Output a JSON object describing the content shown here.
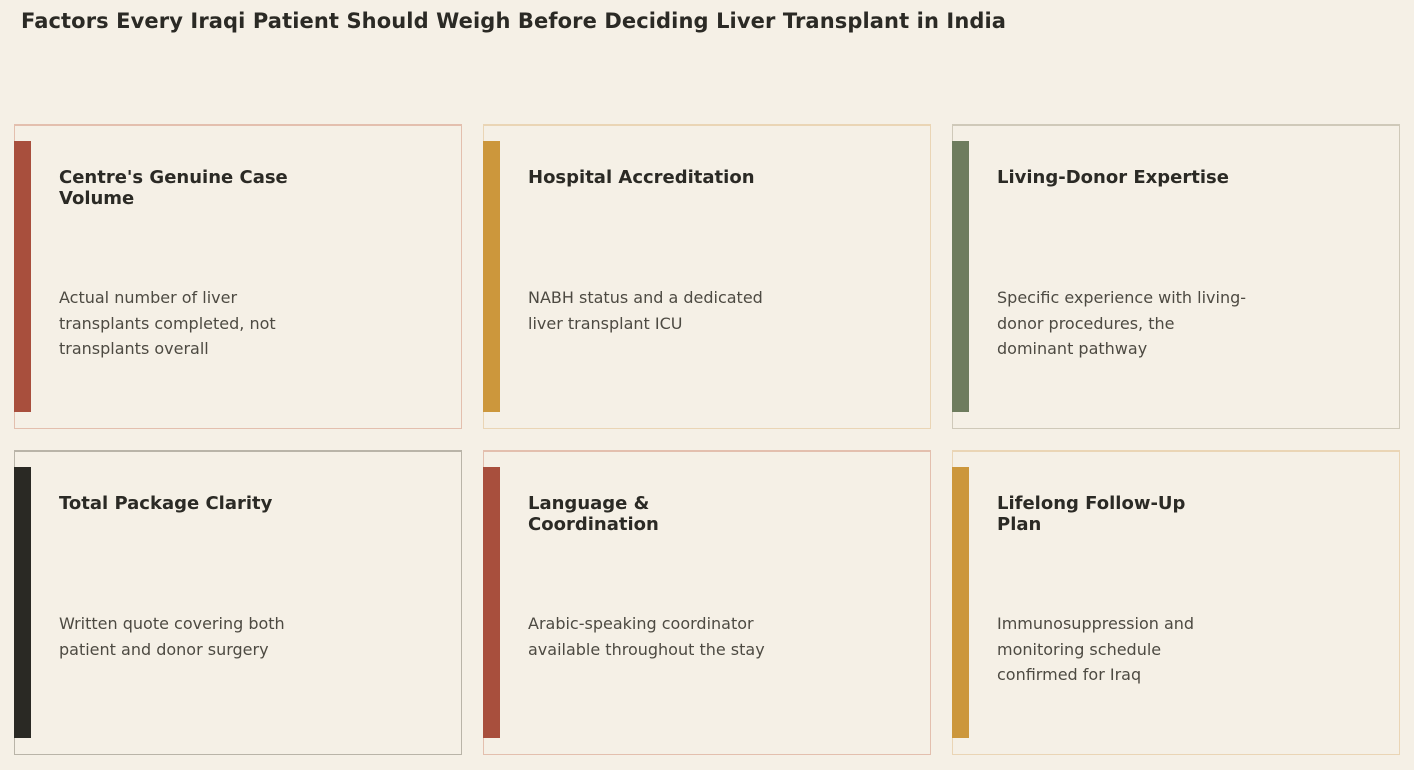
{
  "title": "Factors Every Iraqi Patient Should Weigh Before Deciding Liver Transplant in India",
  "colors": {
    "background": "#f5f0e6",
    "red": "#a84f3d",
    "amber": "#cc973c",
    "olive": "#6e7c5e",
    "black": "#2a2924"
  },
  "cards": [
    {
      "title": "Centre's Genuine Case Volume",
      "description": "Actual number of liver transplants completed, not transplants overall",
      "accent": "#a84f3d"
    },
    {
      "title": "Hospital Accreditation",
      "description": "NABH status and a dedicated liver transplant ICU",
      "accent": "#cc973c"
    },
    {
      "title": "Living-Donor Expertise",
      "description": "Specific experience with living-donor procedures, the dominant pathway",
      "accent": "#6e7c5e"
    },
    {
      "title": "Total Package Clarity",
      "description": "Written quote covering both patient and donor surgery",
      "accent": "#2a2924"
    },
    {
      "title": "Language & Coordination",
      "description": "Arabic-speaking coordinator available throughout the stay",
      "accent": "#a84f3d"
    },
    {
      "title": "Lifelong Follow-Up Plan",
      "description": "Immunosuppression and monitoring schedule confirmed for Iraq",
      "accent": "#cc973c"
    }
  ]
}
